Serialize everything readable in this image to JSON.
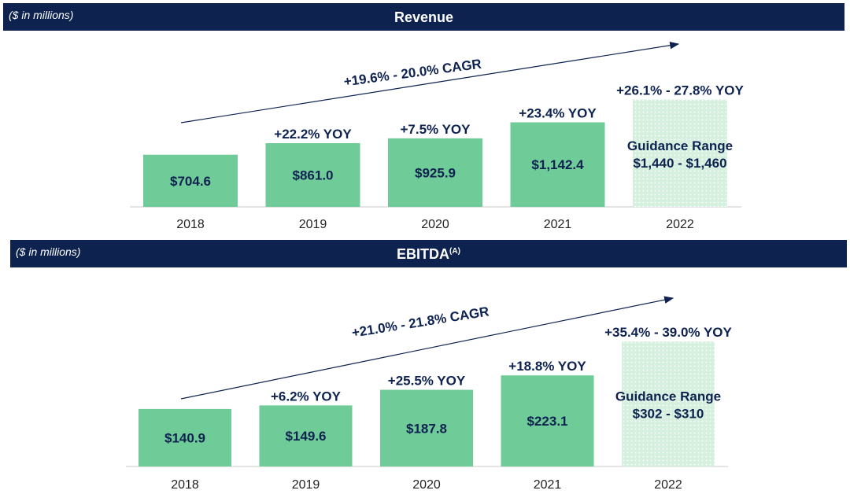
{
  "colors": {
    "header": "#0e2250",
    "bar": "#6fcb98",
    "guidance_bar": "#d6f0df",
    "text": "#0e2250"
  },
  "chart_data": [
    {
      "type": "bar",
      "title": "Revenue",
      "subtitle": "($ in millions)",
      "categories": [
        "2018",
        "2019",
        "2020",
        "2021",
        "2022"
      ],
      "values": [
        704.6,
        861.0,
        925.9,
        1142.4,
        1450
      ],
      "value_labels": [
        "$704.6",
        "$861.0",
        "$925.9",
        "$1,142.4",
        ""
      ],
      "yoy_labels": [
        "",
        "+22.2% YOY",
        "+7.5% YOY",
        "+23.4% YOY",
        "+26.1% - 27.8% YOY"
      ],
      "guidance": {
        "label": "Guidance Range",
        "range": "$1,440 - $1,460",
        "low": 1440,
        "high": 1460
      },
      "cagr_label": "+19.6% - 20.0% CAGR",
      "ylim": [
        0,
        1700
      ]
    },
    {
      "type": "bar",
      "title": "EBITDA",
      "title_superscript": "(A)",
      "subtitle": "($ in millions)",
      "categories": [
        "2018",
        "2019",
        "2020",
        "2021",
        "2022"
      ],
      "values": [
        140.9,
        149.6,
        187.8,
        223.1,
        306
      ],
      "value_labels": [
        "$140.9",
        "$149.6",
        "$187.8",
        "$223.1",
        ""
      ],
      "yoy_labels": [
        "",
        "+6.2% YOY",
        "+25.5% YOY",
        "+18.8% YOY",
        "+35.4% - 39.0% YOY"
      ],
      "guidance": {
        "label": "Guidance Range",
        "range": "$302 - $310",
        "low": 302,
        "high": 310
      },
      "cagr_label": "+21.0% - 21.8% CAGR",
      "ylim": [
        0,
        370
      ]
    }
  ]
}
